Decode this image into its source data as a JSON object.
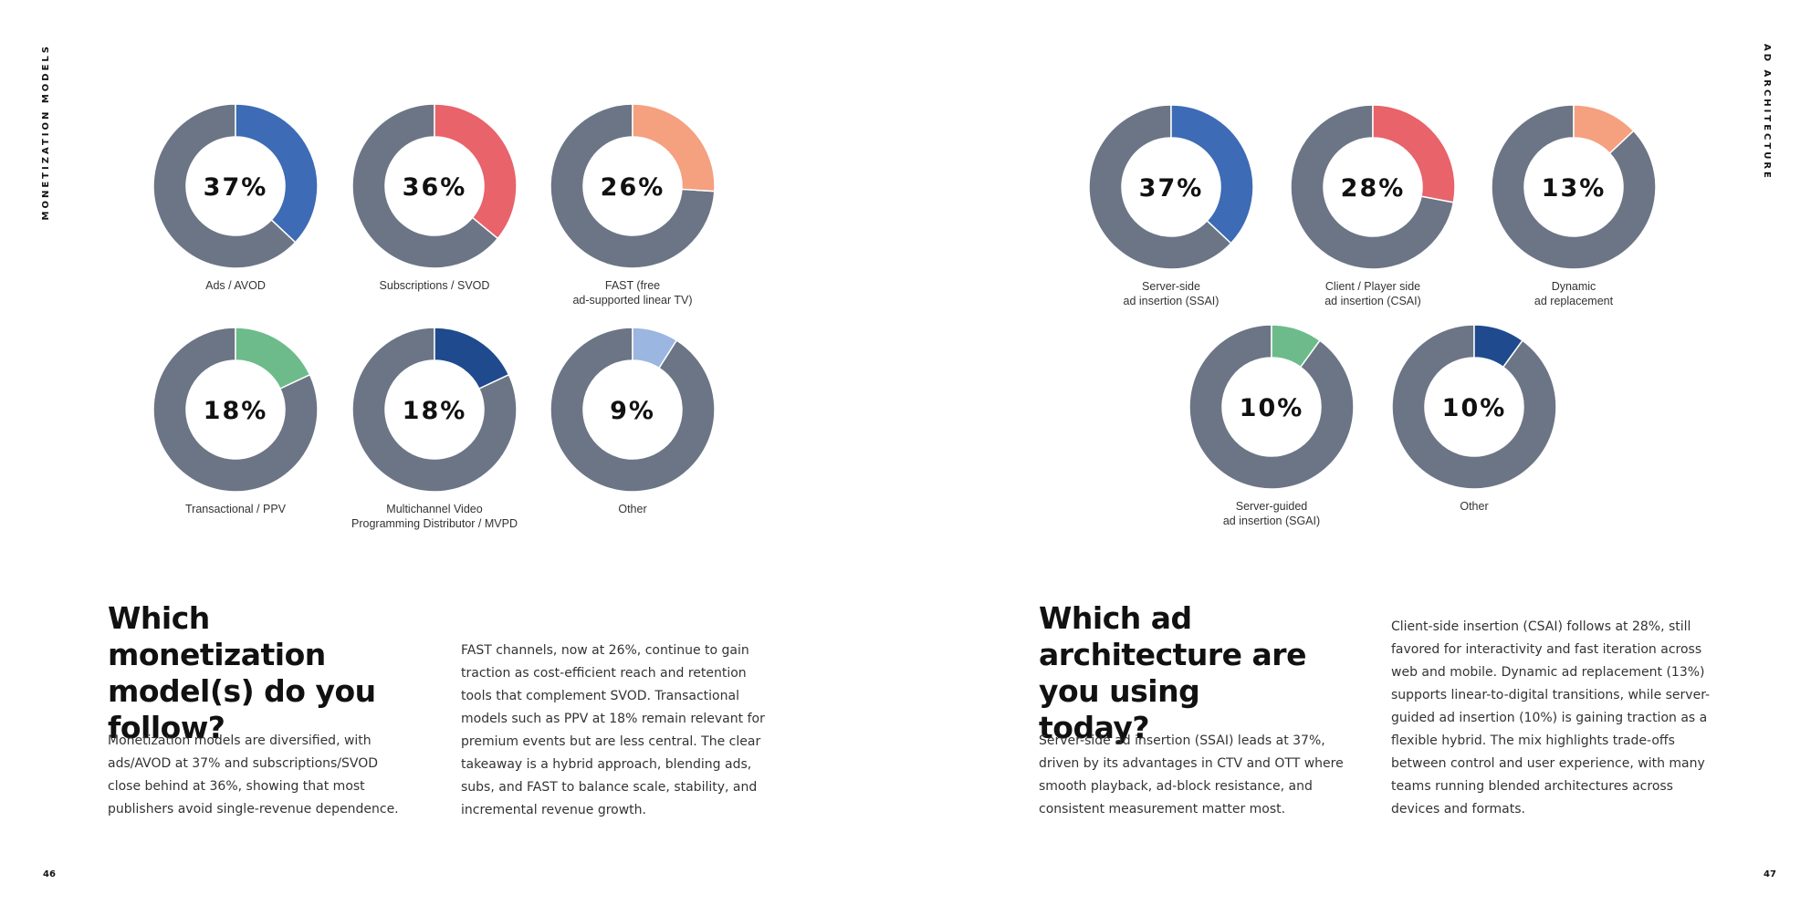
{
  "left_page": {
    "side_label": "MONETIZATION MODELS",
    "page_number": "46",
    "heading": "Which monetization model(s) do you follow?",
    "intro": "Monetization models are diversified, with ads/AVOD at 37% and subscriptions/SVOD close behind at 36%, showing that most publishers avoid single-revenue dependence.",
    "body": "FAST channels, now at 26%, continue to gain traction as cost-efficient reach and retention tools that complement SVOD. Transactional models such as PPV at 18% remain relevant for premium events but are less central. The clear takeaway is a hybrid approach, blending ads, subs, and FAST to balance scale, stability, and incremental revenue growth."
  },
  "right_page": {
    "side_label": "AD ARCHITECTURE",
    "page_number": "47",
    "heading": "Which ad architecture are you using today?",
    "intro": "Server-side ad insertion (SSAI) leads at 37%, driven by its advantages in CTV and OTT where smooth playback, ad-block resistance, and consistent measurement matter most.",
    "body": "Client-side insertion (CSAI) follows at 28%, still favored for interactivity and fast iteration across web and mobile. Dynamic ad replacement (13%) supports linear-to-digital transitions, while server-guided ad insertion (10%) is gaining traction as a flexible hybrid. The mix highlights trade-offs between control and user experience, with many teams running blended architectures across devices and formats."
  },
  "chart_data": [
    {
      "type": "pie",
      "remainder_color": "#6b7585",
      "slices": [
        {
          "label": "Ads / AVOD",
          "value": 37,
          "display": "37%",
          "color": "#3d6bb5"
        },
        {
          "label": "Subscriptions / SVOD",
          "value": 36,
          "display": "36%",
          "color": "#e8636a"
        },
        {
          "label": "FAST (free\nad-supported linear TV)",
          "value": 26,
          "display": "26%",
          "color": "#f5a07f"
        },
        {
          "label": "Transactional / PPV",
          "value": 18,
          "display": "18%",
          "color": "#6dbb8a"
        },
        {
          "label": "Multichannel Video\nProgramming Distributor / MVPD",
          "value": 18,
          "display": "18%",
          "color": "#1f4a8e"
        },
        {
          "label": "Other",
          "value": 9,
          "display": "9%",
          "color": "#9bb6e0"
        }
      ]
    },
    {
      "type": "pie",
      "remainder_color": "#6b7585",
      "slices": [
        {
          "label": "Server-side\nad insertion (SSAI)",
          "value": 37,
          "display": "37%",
          "color": "#3d6bb5"
        },
        {
          "label": "Client / Player side\nad insertion (CSAI)",
          "value": 28,
          "display": "28%",
          "color": "#e8636a"
        },
        {
          "label": "Dynamic\nad replacement",
          "value": 13,
          "display": "13%",
          "color": "#f5a07f"
        },
        {
          "label": "Server-guided\nad insertion (SGAI)",
          "value": 10,
          "display": "10%",
          "color": "#6dbb8a"
        },
        {
          "label": "Other",
          "value": 10,
          "display": "10%",
          "color": "#1f4a8e"
        }
      ]
    }
  ]
}
